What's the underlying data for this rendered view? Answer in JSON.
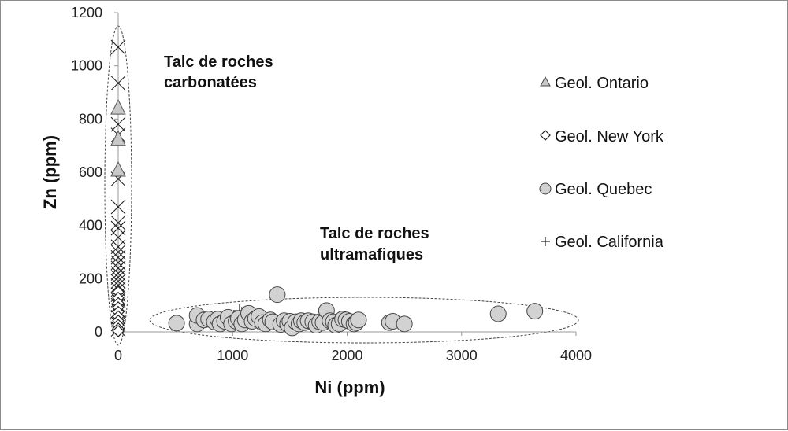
{
  "chart_data": {
    "type": "scatter",
    "xlabel": "Ni (ppm)",
    "ylabel": "Zn (ppm)",
    "xlim": [
      0,
      4000
    ],
    "ylim": [
      0,
      1200
    ],
    "xticks": [
      "0",
      "1000",
      "2000",
      "3000",
      "4000"
    ],
    "yticks": [
      "0",
      "200",
      "400",
      "600",
      "800",
      "1000",
      "1200"
    ],
    "grid": false,
    "legend_position": "right",
    "annotations": [
      {
        "lines": [
          "Talc de roches",
          "carbonatées"
        ]
      },
      {
        "lines": [
          "Talc de roches",
          "ultramafiques"
        ]
      }
    ],
    "series": [
      {
        "name": "Geol. Ontario",
        "marker": "triangle",
        "color": "#c8c8c8",
        "points": [
          [
            0,
            845
          ],
          [
            0,
            728
          ],
          [
            0,
            612
          ]
        ]
      },
      {
        "name": "Geol. New York",
        "marker": "diamond",
        "color": "#ffffff",
        "points": [
          [
            0,
            150
          ],
          [
            0,
            128
          ],
          [
            0,
            108
          ],
          [
            0,
            92
          ],
          [
            0,
            75
          ],
          [
            0,
            58
          ],
          [
            0,
            42
          ],
          [
            0,
            26
          ],
          [
            0,
            12
          ],
          [
            0,
            3
          ]
        ]
      },
      {
        "name": "Geol. Quebec",
        "marker": "circle",
        "color": "#d2d2d2",
        "points": [
          [
            510,
            33
          ],
          [
            690,
            30
          ],
          [
            690,
            62
          ],
          [
            750,
            45
          ],
          [
            790,
            48
          ],
          [
            840,
            38
          ],
          [
            870,
            48
          ],
          [
            890,
            30
          ],
          [
            930,
            40
          ],
          [
            960,
            55
          ],
          [
            990,
            30
          ],
          [
            1030,
            40
          ],
          [
            1050,
            50
          ],
          [
            1080,
            30
          ],
          [
            1110,
            45
          ],
          [
            1140,
            70
          ],
          [
            1170,
            40
          ],
          [
            1200,
            50
          ],
          [
            1230,
            58
          ],
          [
            1260,
            35
          ],
          [
            1290,
            30
          ],
          [
            1330,
            45
          ],
          [
            1350,
            38
          ],
          [
            1390,
            140
          ],
          [
            1420,
            28
          ],
          [
            1450,
            42
          ],
          [
            1480,
            30
          ],
          [
            1500,
            40
          ],
          [
            1520,
            15
          ],
          [
            1550,
            38
          ],
          [
            1580,
            30
          ],
          [
            1600,
            42
          ],
          [
            1630,
            35
          ],
          [
            1660,
            42
          ],
          [
            1700,
            38
          ],
          [
            1730,
            25
          ],
          [
            1760,
            38
          ],
          [
            1790,
            35
          ],
          [
            1820,
            80
          ],
          [
            1850,
            42
          ],
          [
            1880,
            38
          ],
          [
            1900,
            25
          ],
          [
            1930,
            30
          ],
          [
            1960,
            48
          ],
          [
            1990,
            45
          ],
          [
            2020,
            40
          ],
          [
            2060,
            30
          ],
          [
            2080,
            35
          ],
          [
            2100,
            45
          ],
          [
            2370,
            35
          ],
          [
            2400,
            40
          ],
          [
            2500,
            30
          ],
          [
            3320,
            68
          ],
          [
            3640,
            78
          ]
        ]
      },
      {
        "name": "Geol. California",
        "marker": "plus",
        "color": "#222222",
        "points": [
          [
            1060,
            80
          ],
          [
            1080,
            70
          ],
          [
            1140,
            60
          ]
        ]
      },
      {
        "name": "",
        "marker": "x",
        "color": "#222222",
        "points": [
          [
            0,
            1070
          ],
          [
            0,
            935
          ],
          [
            0,
            780
          ],
          [
            0,
            740
          ],
          [
            0,
            575
          ],
          [
            0,
            470
          ],
          [
            0,
            410
          ],
          [
            0,
            390
          ],
          [
            0,
            355
          ],
          [
            0,
            320
          ],
          [
            0,
            300
          ],
          [
            0,
            280
          ],
          [
            0,
            260
          ],
          [
            0,
            240
          ],
          [
            0,
            220
          ],
          [
            0,
            205
          ],
          [
            0,
            190
          ],
          [
            0,
            175
          ],
          [
            0,
            160
          ],
          [
            0,
            140
          ],
          [
            0,
            120
          ],
          [
            0,
            100
          ],
          [
            0,
            80
          ],
          [
            0,
            55
          ],
          [
            0,
            30
          ],
          [
            0,
            10
          ]
        ]
      }
    ]
  }
}
